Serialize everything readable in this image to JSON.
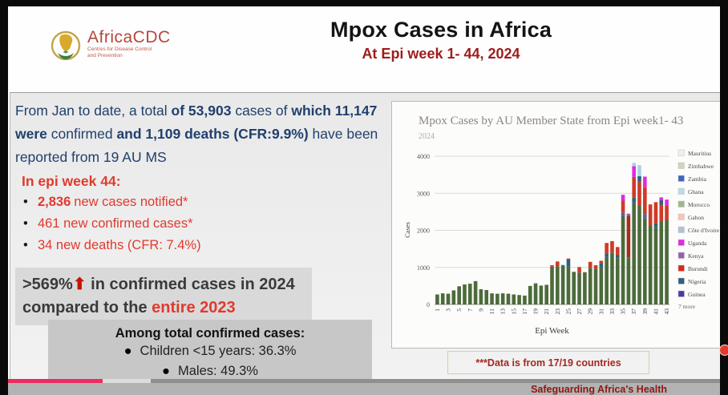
{
  "header": {
    "logo": {
      "brand": "AfricaCDC",
      "tagline_line1": "Centres for Disease Control",
      "tagline_line2": "and Prevention"
    },
    "title": "Mpox Cases in Africa",
    "subtitle": "At Epi week 1- 44, 2024"
  },
  "summary_paragraph": [
    {
      "t": "From Jan to date, a total ",
      "b": 0
    },
    {
      "t": "of 53,903",
      "b": 1
    },
    {
      "t": " cases of ",
      "b": 0
    },
    {
      "t": "which 11,147 were",
      "b": 1
    },
    {
      "t": " confirmed ",
      "b": 0
    },
    {
      "t": "and 1,109 deaths (CFR:9.9%)",
      "b": 1
    },
    {
      "t": " have been reported from 19 AU MS",
      "b": 0
    }
  ],
  "epi_week": {
    "heading": "In epi week 44:",
    "bullets": [
      {
        "bold": "2,836",
        "text": " new cases notified*"
      },
      {
        "bold": "",
        "text": "461 new confirmed cases*"
      },
      {
        "bold": "",
        "text": "34 new deaths (CFR: 7.4%)"
      }
    ]
  },
  "increase_callout": {
    "lead": ">569%",
    "arrow": "⬆",
    "middle": " in confirmed cases in 2024 compared to the ",
    "highlight": "entire 2023"
  },
  "confirmed_breakdown": {
    "heading": "Among total confirmed cases:",
    "items": [
      "Children <15 years: 36.3%",
      "Males: 49.3%"
    ]
  },
  "data_note": "***Data is from 17/19 countries",
  "footer": {
    "slogan": "Safeguarding Africa's Health"
  },
  "chart_data": {
    "type": "bar",
    "stacked": true,
    "title": "Mpox Cases by AU Member State from Epi week1- 43",
    "subtitle": "2024",
    "xlabel": "Epi Week",
    "ylabel": "Cases",
    "ylim": [
      0,
      4000
    ],
    "yticks": [
      0,
      1000,
      2000,
      3000,
      4000
    ],
    "x_tick_step_note": "odd weeks 1-43 labeled, rotated vertical",
    "legend_position": "right",
    "legend_more": "7 more",
    "legend": [
      {
        "name": "Mauritius",
        "color": "#f1efe9"
      },
      {
        "name": "Zimbabwe",
        "color": "#cdd8b5"
      },
      {
        "name": "Zambia",
        "color": "#3f66bd"
      },
      {
        "name": "Ghana",
        "color": "#bcdbe8"
      },
      {
        "name": "Morocco",
        "color": "#9cb98d"
      },
      {
        "name": "Gabon",
        "color": "#f3c7b4"
      },
      {
        "name": "Côte d'Ivoire",
        "color": "#aec4d6"
      },
      {
        "name": "Uganda",
        "color": "#df2bdf"
      },
      {
        "name": "Kenya",
        "color": "#9a5fae"
      },
      {
        "name": "Burundi",
        "color": "#d5291b"
      },
      {
        "name": "Nigeria",
        "color": "#2e5f7d"
      },
      {
        "name": "Guinea",
        "color": "#493aa5"
      }
    ],
    "series_colors": {
      "g": "#4c6b3b",
      "r": "#cf3a28",
      "dr": "#a03024",
      "nb": "#2e5f7d",
      "zb": "#3f66bd",
      "m": "#df2bdf",
      "k": "#9a5fae",
      "gh": "#a9d3e4"
    },
    "weeks": [
      1,
      2,
      3,
      4,
      5,
      6,
      7,
      8,
      9,
      10,
      11,
      12,
      13,
      14,
      15,
      16,
      17,
      18,
      19,
      20,
      21,
      22,
      23,
      24,
      25,
      26,
      27,
      28,
      29,
      30,
      31,
      32,
      33,
      34,
      35,
      36,
      37,
      38,
      39,
      40,
      41,
      42,
      43
    ],
    "bars": [
      [
        [
          "g",
          270
        ]
      ],
      [
        [
          "g",
          300
        ]
      ],
      [
        [
          "g",
          290
        ]
      ],
      [
        [
          "g",
          380
        ]
      ],
      [
        [
          "g",
          490
        ]
      ],
      [
        [
          "g",
          540
        ]
      ],
      [
        [
          "g",
          560
        ]
      ],
      [
        [
          "g",
          630
        ]
      ],
      [
        [
          "g",
          410
        ]
      ],
      [
        [
          "g",
          390
        ]
      ],
      [
        [
          "g",
          300
        ]
      ],
      [
        [
          "g",
          290
        ]
      ],
      [
        [
          "g",
          300
        ]
      ],
      [
        [
          "g",
          290
        ]
      ],
      [
        [
          "g",
          270
        ]
      ],
      [
        [
          "g",
          255
        ]
      ],
      [
        [
          "g",
          240
        ]
      ],
      [
        [
          "g",
          500
        ]
      ],
      [
        [
          "g",
          570
        ]
      ],
      [
        [
          "g",
          510
        ]
      ],
      [
        [
          "g",
          530
        ]
      ],
      [
        [
          "g",
          1020
        ],
        [
          "r",
          40
        ]
      ],
      [
        [
          "g",
          1030
        ],
        [
          "r",
          130
        ]
      ],
      [
        [
          "g",
          1040
        ],
        [
          "zb",
          25
        ]
      ],
      [
        [
          "g",
          1020
        ],
        [
          "nb",
          190
        ],
        [
          "r",
          30
        ]
      ],
      [
        [
          "g",
          880
        ]
      ],
      [
        [
          "g",
          860
        ],
        [
          "r",
          150
        ]
      ],
      [
        [
          "g",
          870
        ]
      ],
      [
        [
          "g",
          990
        ],
        [
          "r",
          160
        ]
      ],
      [
        [
          "g",
          970
        ],
        [
          "r",
          90
        ]
      ],
      [
        [
          "g",
          1000
        ],
        [
          "nb",
          120
        ],
        [
          "r",
          60
        ]
      ],
      [
        [
          "g",
          1280
        ],
        [
          "nb",
          90
        ],
        [
          "r",
          290
        ]
      ],
      [
        [
          "g",
          1400
        ],
        [
          "r",
          310
        ]
      ],
      [
        [
          "g",
          1250
        ],
        [
          "nb",
          90
        ],
        [
          "r",
          210
        ]
      ],
      [
        [
          "g",
          2380
        ],
        [
          "zb",
          90
        ],
        [
          "r",
          330
        ],
        [
          "m",
          160
        ]
      ],
      [
        [
          "g",
          1270
        ],
        [
          "dr",
          1120
        ],
        [
          "k",
          60
        ]
      ],
      [
        [
          "g",
          2750
        ],
        [
          "nb",
          130
        ],
        [
          "r",
          560
        ],
        [
          "m",
          290
        ],
        [
          "gh",
          90
        ]
      ],
      [
        [
          "g",
          2680
        ],
        [
          "r",
          640
        ],
        [
          "nb",
          140
        ],
        [
          "gh",
          300
        ]
      ],
      [
        [
          "g",
          2330
        ],
        [
          "zb",
          100
        ],
        [
          "r",
          730
        ],
        [
          "m",
          290
        ]
      ],
      [
        [
          "g",
          2140
        ],
        [
          "r",
          560
        ]
      ],
      [
        [
          "g",
          2100
        ],
        [
          "nb",
          90
        ],
        [
          "r",
          570
        ]
      ],
      [
        [
          "g",
          2250
        ],
        [
          "r",
          440
        ],
        [
          "nb",
          120
        ],
        [
          "m",
          80
        ]
      ],
      [
        [
          "g",
          2280
        ],
        [
          "r",
          380
        ],
        [
          "m",
          170
        ]
      ]
    ]
  }
}
